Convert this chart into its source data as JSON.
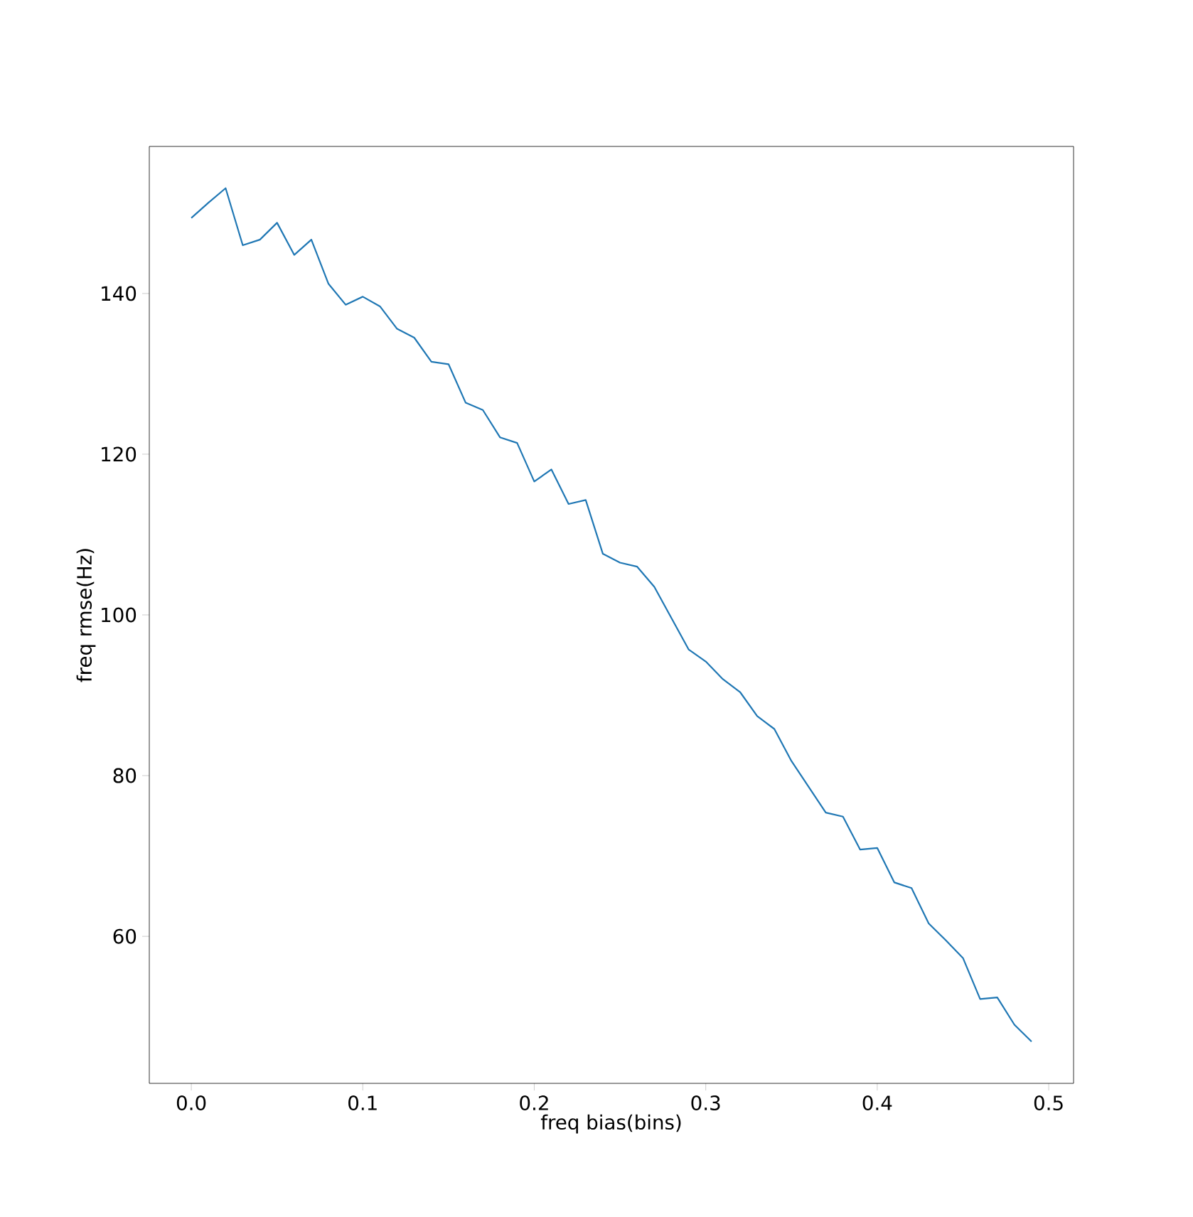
{
  "chart_data": {
    "type": "line",
    "xlabel": "freq bias(bins)",
    "ylabel": "freq rmse(Hz)",
    "x": [
      0,
      0.01,
      0.02,
      0.03,
      0.04,
      0.05,
      0.06,
      0.07,
      0.08,
      0.09,
      0.1,
      0.11,
      0.12,
      0.13,
      0.14,
      0.15,
      0.16,
      0.17,
      0.18,
      0.19,
      0.2,
      0.21,
      0.22,
      0.23,
      0.24,
      0.25,
      0.26,
      0.27,
      0.28,
      0.29,
      0.3,
      0.31,
      0.32,
      0.33,
      0.34,
      0.35,
      0.36,
      0.37,
      0.38,
      0.39,
      0.4,
      0.41,
      0.42,
      0.43,
      0.44,
      0.45,
      0.46,
      0.47,
      0.48,
      0.49
    ],
    "series": [
      {
        "color": "#1f77b4",
        "values": [
          149.4,
          151.3,
          153.1,
          146.0,
          146.7,
          148.8,
          144.8,
          146.7,
          141.2,
          138.6,
          139.6,
          138.4,
          135.6,
          134.5,
          131.5,
          131.2,
          126.4,
          125.5,
          122.1,
          121.4,
          116.6,
          118.1,
          113.8,
          114.3,
          107.6,
          106.5,
          106.0,
          103.5,
          99.6,
          95.7,
          94.2,
          92.0,
          90.4,
          87.4,
          85.8,
          81.8,
          78.6,
          75.4,
          74.9,
          70.8,
          71.0,
          66.7,
          66.0,
          61.6,
          59.5,
          57.3,
          52.2,
          52.4,
          49.0,
          46.9
        ]
      }
    ],
    "xlim": [
      -0.0245,
      0.5145
    ],
    "ylim": [
      41.7,
      158.3
    ],
    "xticks": [
      {
        "value": 0,
        "label": "0.0"
      },
      0.1,
      0.2,
      0.3,
      0.4,
      0.5
    ],
    "yticks": [
      60,
      80,
      100,
      120,
      140
    ]
  }
}
